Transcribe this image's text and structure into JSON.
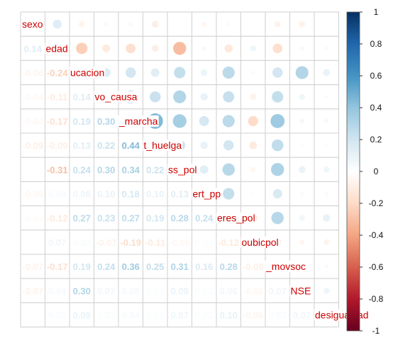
{
  "chart_data": {
    "type": "heatmap",
    "variables": [
      "sexo",
      "edad",
      "ucacion",
      "vo_causa",
      "_marcha",
      "t_huelga",
      "ss_pol",
      "ert_pp",
      "eres_pol",
      "oubicpol",
      "_movsoc",
      "NSE",
      "desigualdad"
    ],
    "matrix": [
      [
        1,
        0.14,
        -0.06,
        -0.04,
        -0.04,
        -0.09,
        0.01,
        -0.05,
        -0.03,
        0.01,
        -0.07,
        -0.07,
        0.01
      ],
      [
        0.14,
        1,
        -0.24,
        -0.11,
        -0.17,
        -0.09,
        -0.31,
        0.04,
        -0.12,
        0.07,
        -0.17,
        0.04,
        0.03
      ],
      [
        -0.06,
        -0.24,
        1,
        0.14,
        0.19,
        0.13,
        0.24,
        0.08,
        0.27,
        0.03,
        0.19,
        0.3,
        0.09
      ],
      [
        -0.04,
        -0.11,
        0.14,
        1,
        0.3,
        0.22,
        0.3,
        0.1,
        0.23,
        -0.07,
        0.24,
        0.07,
        0.03
      ],
      [
        -0.04,
        -0.17,
        0.19,
        0.3,
        1,
        0.44,
        0.34,
        0.18,
        0.27,
        -0.19,
        0.36,
        0.05,
        0.04
      ],
      [
        -0.09,
        -0.09,
        0.13,
        0.22,
        0.44,
        1,
        0.22,
        0.1,
        0.19,
        -0.11,
        0.25,
        0.02,
        0.02
      ],
      [
        0.01,
        -0.31,
        0.24,
        0.3,
        0.34,
        0.22,
        1,
        0.13,
        0.28,
        -0.05,
        0.31,
        0.09,
        0.07
      ],
      [
        -0.05,
        0.04,
        0.08,
        0.1,
        0.18,
        0.1,
        0.13,
        1,
        0.24,
        0.02,
        0.16,
        0.03,
        0.03
      ],
      [
        -0.03,
        -0.12,
        0.27,
        0.23,
        0.27,
        0.19,
        0.28,
        0.24,
        1,
        -0.12,
        0.28,
        0.06,
        0.1
      ],
      [
        0.01,
        0.07,
        0.03,
        -0.07,
        -0.19,
        -0.11,
        -0.05,
        0.02,
        -0.12,
        1,
        -0.09,
        -0.05,
        -0.06
      ],
      [
        -0.07,
        -0.17,
        0.19,
        0.24,
        0.36,
        0.25,
        0.31,
        0.16,
        0.28,
        -0.09,
        1,
        0.07,
        0.03
      ],
      [
        -0.07,
        0.04,
        0.3,
        0.07,
        0.05,
        0.02,
        0.09,
        0.03,
        0.06,
        -0.05,
        0.07,
        1,
        0.07
      ],
      [
        0.01,
        0.03,
        0.09,
        0.03,
        0.04,
        0.02,
        0.07,
        0.03,
        0.1,
        -0.06,
        0.03,
        0.07,
        1
      ]
    ],
    "lower": "number",
    "upper": "circle",
    "diag": "label",
    "colorbar": {
      "range": [
        -1,
        1
      ],
      "ticks": [
        "1",
        "0.8",
        "0.6",
        "0.4",
        "0.2",
        "0",
        "-0.2",
        "-0.4",
        "-0.6",
        "-0.8",
        "-1"
      ],
      "placement": "right",
      "colors": [
        "#67001f",
        "#b2182b",
        "#d6604d",
        "#f4a582",
        "#fddbc7",
        "#ffffff",
        "#d1e5f0",
        "#92c5de",
        "#4393c3",
        "#2166ac",
        "#053061"
      ]
    },
    "label_color": "#cc0000",
    "grid": true
  }
}
